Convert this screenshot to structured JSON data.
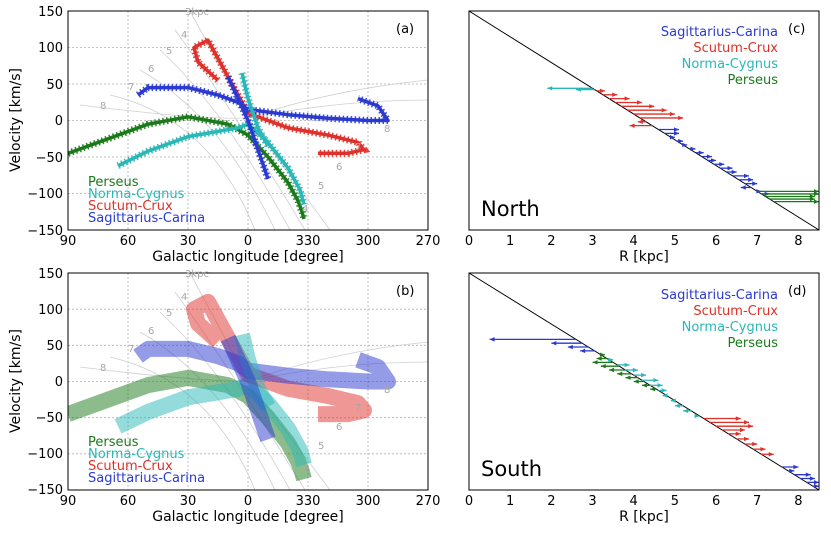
{
  "colors": {
    "perseus": "#1a7a1a",
    "norma": "#2ab7b7",
    "scutum": "#e0302a",
    "sagittarius": "#2a3ad0"
  },
  "chart_data": [
    {
      "id": "a",
      "type": "line",
      "panel_label": "(a)",
      "xlabel": "Galactic longitude [degree]",
      "ylabel": "Velocity [km/s]",
      "xlim": [
        90,
        270
      ],
      "ylim": [
        -150,
        150
      ],
      "xticks": [
        "90",
        "60",
        "30",
        "0",
        "330",
        "300",
        "270"
      ],
      "yticks": [
        "150",
        "100",
        "50",
        "0",
        "−50",
        "−100",
        "−150"
      ],
      "distance_labels": [
        "3kpc",
        "4",
        "5",
        "6",
        "7",
        "8",
        "4",
        "5",
        "6",
        "7",
        "8"
      ],
      "legend": [
        "Perseus",
        "Norma-Cygnus",
        "Scutum-Crux",
        "Sagittarius-Carina"
      ],
      "series": [
        {
          "name": "Perseus",
          "key": "perseus",
          "x": [
            90,
            70,
            50,
            30,
            10,
            0,
            -10,
            -20,
            -25,
            -27,
            -28
          ],
          "y": [
            -45,
            -25,
            -5,
            5,
            -5,
            -20,
            -50,
            -85,
            -110,
            -125,
            -135
          ]
        },
        {
          "name": "Norma-Cygnus",
          "key": "norma",
          "x": [
            65,
            50,
            30,
            15,
            5,
            0,
            -10,
            -20,
            -26,
            -28
          ],
          "y": [
            -62,
            -42,
            -22,
            -15,
            -10,
            -5,
            -30,
            -65,
            -95,
            -115
          ]
        },
        {
          "name": "Scutum-Crux",
          "key": "scutum",
          "x": [
            15,
            25,
            27,
            20,
            10,
            0,
            -20,
            -40,
            -55,
            -58,
            -50,
            -35
          ],
          "y": [
            55,
            80,
            100,
            110,
            60,
            10,
            -10,
            -20,
            -30,
            -40,
            -45,
            -45
          ]
        },
        {
          "name": "Sagittarius-Carina",
          "key": "sagittarius",
          "x": [
            55,
            50,
            30,
            15,
            5,
            0,
            -20,
            -40,
            -60,
            -70,
            -65,
            -55
          ],
          "y": [
            35,
            45,
            45,
            35,
            25,
            15,
            8,
            3,
            0,
            0,
            20,
            30
          ]
        },
        {
          "name": "Norma-Cygnus",
          "key": "norma",
          "x": [
            3,
            0,
            -5,
            -10
          ],
          "y": [
            65,
            30,
            -10,
            -35
          ]
        },
        {
          "name": "Sagittarius-Carina",
          "key": "sagittarius",
          "x": [
            10,
            5,
            0,
            -5,
            -10
          ],
          "y": [
            60,
            30,
            0,
            -40,
            -80
          ]
        }
      ]
    },
    {
      "id": "b",
      "type": "line",
      "panel_label": "(b)",
      "xlabel": "Galactic longitude [degree]",
      "ylabel": "Velocity [km/s]",
      "xlim": [
        90,
        270
      ],
      "ylim": [
        -150,
        150
      ],
      "xticks": [
        "90",
        "60",
        "30",
        "0",
        "330",
        "300",
        "270"
      ],
      "yticks": [
        "150",
        "100",
        "50",
        "0",
        "−50",
        "−100",
        "−150"
      ],
      "distance_labels": [
        "3kpc",
        "4",
        "5",
        "6",
        "7",
        "8",
        "4",
        "5",
        "6",
        "7",
        "8"
      ],
      "legend": [
        "Perseus",
        "Norma-Cygnus",
        "Scutum-Crux",
        "Sagittarius-Carina"
      ],
      "series": [
        {
          "name": "Perseus",
          "key": "perseus",
          "x": [
            90,
            70,
            50,
            30,
            10,
            0,
            -10,
            -20,
            -25,
            -27,
            -28
          ],
          "y": [
            -45,
            -25,
            -5,
            5,
            -5,
            -20,
            -50,
            -85,
            -110,
            -125,
            -135
          ]
        },
        {
          "name": "Norma-Cygnus",
          "key": "norma",
          "x": [
            65,
            50,
            30,
            15,
            5,
            0,
            -10,
            -20,
            -26,
            -28
          ],
          "y": [
            -62,
            -42,
            -22,
            -15,
            -10,
            -5,
            -30,
            -65,
            -95,
            -115
          ]
        },
        {
          "name": "Scutum-Crux",
          "key": "scutum",
          "x": [
            15,
            25,
            27,
            20,
            10,
            0,
            -20,
            -40,
            -55,
            -58,
            -50,
            -35
          ],
          "y": [
            55,
            80,
            100,
            110,
            60,
            10,
            -10,
            -20,
            -30,
            -40,
            -45,
            -45
          ]
        },
        {
          "name": "Sagittarius-Carina",
          "key": "sagittarius",
          "x": [
            55,
            50,
            30,
            15,
            5,
            0,
            -20,
            -40,
            -60,
            -70,
            -65,
            -55
          ],
          "y": [
            35,
            45,
            45,
            35,
            25,
            15,
            8,
            3,
            0,
            0,
            20,
            30
          ]
        },
        {
          "name": "Norma-Cygnus",
          "key": "norma",
          "x": [
            3,
            0,
            -5,
            -10
          ],
          "y": [
            65,
            30,
            -10,
            -35
          ]
        },
        {
          "name": "Sagittarius-Carina",
          "key": "sagittarius",
          "x": [
            10,
            5,
            0,
            -5,
            -10
          ],
          "y": [
            60,
            30,
            0,
            -40,
            -80
          ]
        }
      ]
    },
    {
      "id": "c",
      "type": "bar",
      "panel_label": "(c)",
      "region_label": "North",
      "xlabel": "R [kpc]",
      "xlim": [
        0,
        8.5
      ],
      "xticks": [
        "0",
        "1",
        "2",
        "3",
        "4",
        "5",
        "6",
        "7",
        "8"
      ],
      "legend": [
        "Sagittarius-Carina",
        "Scutum-Crux",
        "Norma-Cygnus",
        "Perseus"
      ],
      "diagonal": {
        "r_start": 0,
        "r_end": 8.5
      },
      "series": [
        {
          "name": "Norma-Cygnus",
          "key": "norma",
          "ry": [
            3.0,
            3.05
          ],
          "r_end": [
            1.9,
            2.6
          ]
        },
        {
          "name": "Scutum-Crux",
          "key": "scutum",
          "ry": [
            3.1,
            3.25,
            3.4,
            3.55,
            3.7,
            3.85,
            4.0,
            4.15,
            4.3,
            4.45
          ],
          "r_end": [
            3.3,
            3.6,
            3.9,
            4.2,
            4.5,
            4.8,
            5.0,
            5.2,
            4.1,
            3.9
          ]
        },
        {
          "name": "Sagittarius-Carina",
          "key": "sagittarius",
          "ry": [
            4.6,
            4.75,
            4.9,
            5.05,
            5.2,
            5.35,
            5.5,
            5.65,
            5.8,
            5.95,
            6.1,
            6.25,
            6.4,
            6.55,
            6.7,
            6.85,
            7.0,
            7.1
          ],
          "r_end": [
            5.1,
            5.1,
            5.0,
            5.2,
            5.3,
            5.5,
            5.7,
            5.9,
            6.0,
            6.2,
            6.4,
            6.5,
            6.8,
            6.9,
            7.0,
            6.6,
            7.1,
            7.3
          ]
        },
        {
          "name": "Perseus",
          "key": "perseus",
          "ry": [
            7.0,
            7.1,
            7.2,
            7.3,
            7.4
          ],
          "r_end": [
            8.5,
            8.5,
            8.4,
            8.4,
            8.5
          ]
        }
      ]
    },
    {
      "id": "d",
      "type": "bar",
      "panel_label": "(d)",
      "region_label": "South",
      "xlabel": "R [kpc]",
      "xlim": [
        0,
        8.5
      ],
      "xticks": [
        "0",
        "1",
        "2",
        "3",
        "4",
        "5",
        "6",
        "7",
        "8"
      ],
      "legend": [
        "Sagittarius-Carina",
        "Scutum-Crux",
        "Norma-Cygnus",
        "Perseus"
      ],
      "diagonal": {
        "r_start": 0,
        "r_end": 8.5
      },
      "series": [
        {
          "name": "Sagittarius-Carina",
          "key": "sagittarius",
          "ry": [
            2.6,
            2.75,
            2.9,
            3.05
          ],
          "r_end": [
            0.5,
            2.0,
            2.4,
            2.7
          ]
        },
        {
          "name": "Perseus",
          "key": "perseus",
          "ry": [
            3.2,
            3.35,
            3.5,
            3.65,
            3.8,
            3.95,
            4.1,
            4.25,
            4.4,
            4.55
          ],
          "r_end": [
            3.3,
            3.1,
            3.0,
            3.2,
            3.4,
            3.6,
            3.8,
            4.0,
            4.2,
            4.4
          ]
        },
        {
          "name": "Norma-Cygnus",
          "key": "norma",
          "ry": [
            3.4,
            3.6,
            3.8,
            4.0,
            4.2,
            4.4,
            4.6,
            4.8,
            5.0,
            5.2,
            5.4,
            5.6
          ],
          "r_end": [
            3.5,
            3.9,
            4.1,
            4.3,
            4.6,
            4.7,
            4.8,
            4.7,
            4.9,
            5.0,
            5.2,
            5.6
          ]
        },
        {
          "name": "Scutum-Crux",
          "key": "scutum",
          "ry": [
            5.7,
            5.85,
            6.0,
            6.15,
            6.3,
            6.5,
            6.7,
            6.9,
            7.1
          ],
          "r_end": [
            6.6,
            6.8,
            6.9,
            6.7,
            6.6,
            6.8,
            7.0,
            7.2,
            7.4
          ]
        },
        {
          "name": "Sagittarius-Carina",
          "key": "sagittarius",
          "ry": [
            7.6,
            7.75,
            7.9,
            8.05,
            8.2,
            8.35
          ],
          "r_end": [
            8.0,
            7.9,
            8.3,
            8.4,
            8.5,
            8.5
          ]
        }
      ]
    }
  ]
}
